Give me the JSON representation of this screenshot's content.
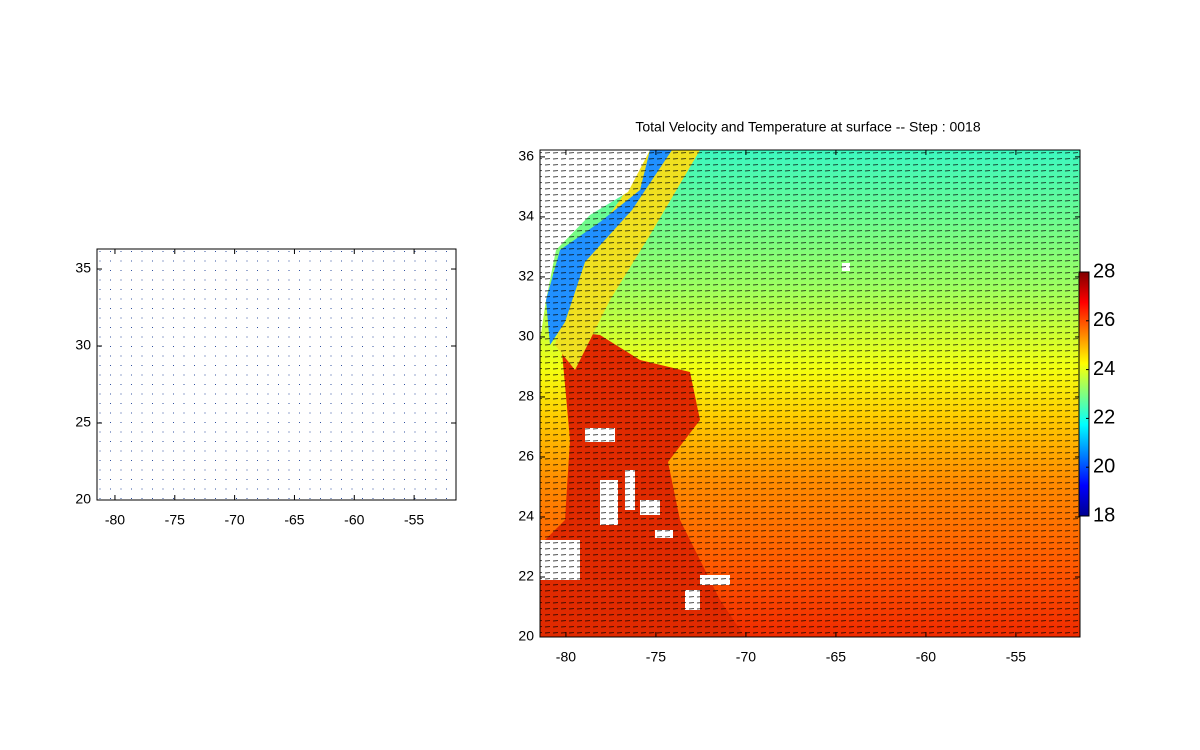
{
  "chart_data": [
    {
      "type": "quiver",
      "xlim": [
        -81.5,
        -51.5
      ],
      "ylim": [
        20,
        36.3
      ],
      "xticks": [
        -80,
        -75,
        -70,
        -65,
        -60,
        -55
      ],
      "yticks": [
        20,
        25,
        30,
        35
      ]
    },
    {
      "type": "pcolor",
      "title": "Total Velocity and Temperature at surface -- Step : 0018",
      "xlim": [
        -81.44,
        -51.44
      ],
      "ylim": [
        20,
        36.23
      ],
      "xticks": [
        -80,
        -75,
        -70,
        -65,
        -60,
        -55
      ],
      "yticks": [
        20,
        22,
        24,
        26,
        28,
        30,
        32,
        34,
        36
      ],
      "colorbar": {
        "clim": [
          18,
          28
        ],
        "ticks": [
          18,
          20,
          22,
          24,
          26,
          28
        ],
        "colormap": "jet"
      }
    }
  ]
}
